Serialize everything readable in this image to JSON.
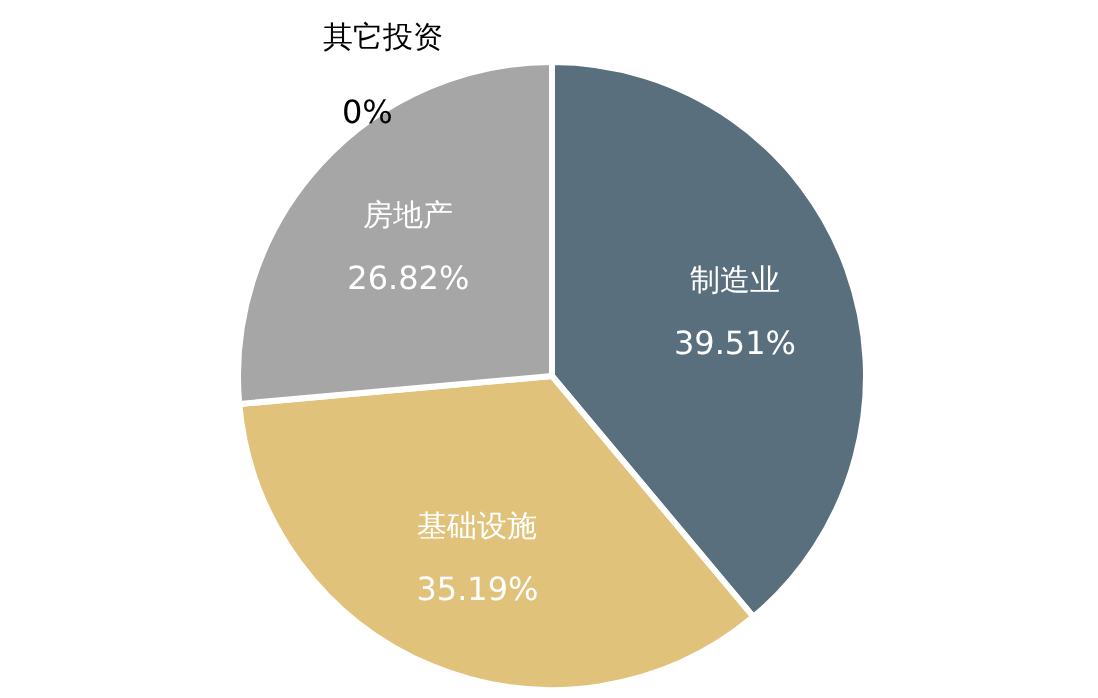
{
  "chart_data": {
    "type": "pie",
    "categories": [
      "制造业",
      "基础设施",
      "房地产",
      "其它投资"
    ],
    "values": [
      39.51,
      35.19,
      26.82,
      0
    ],
    "value_labels": [
      "39.51%",
      "35.19%",
      "26.82%",
      "0%"
    ],
    "colors": [
      "#596f7e",
      "#e0c27a",
      "#a6a6a6",
      "#c59aa5"
    ]
  }
}
